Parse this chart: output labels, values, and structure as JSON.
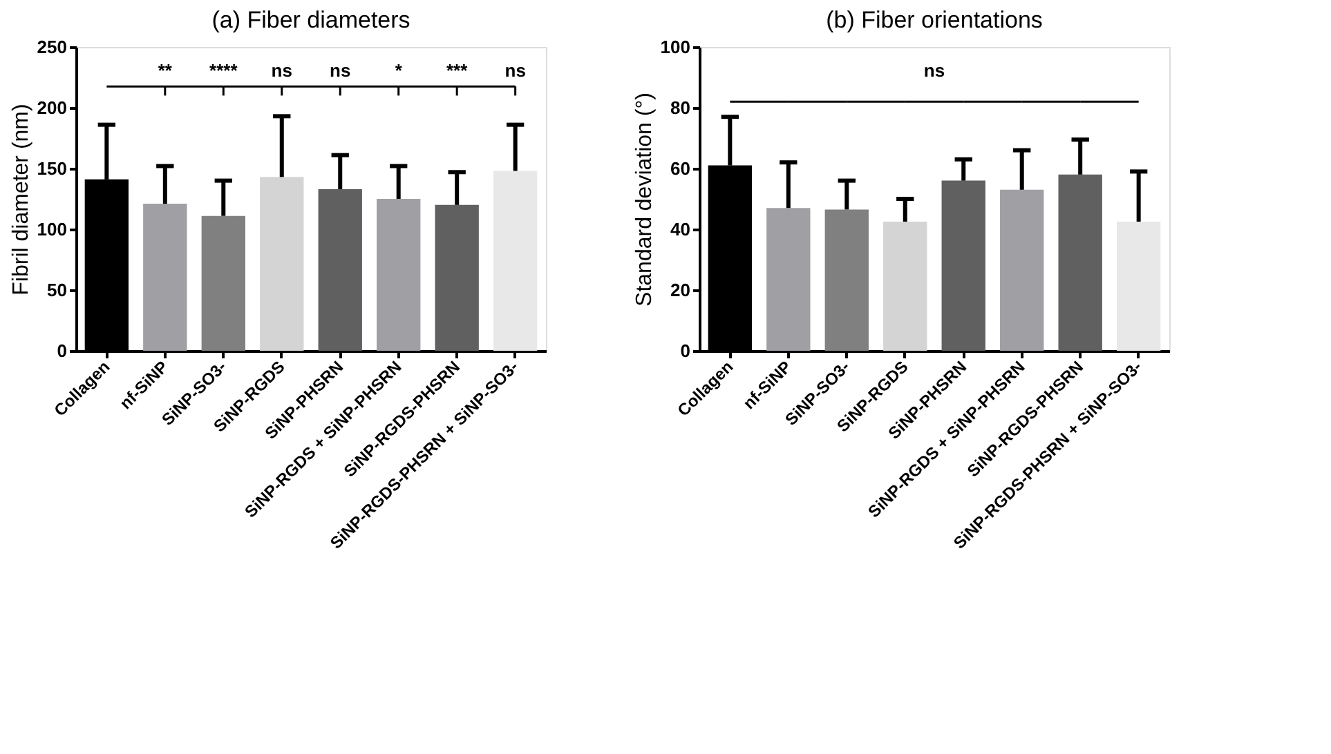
{
  "chart_data": [
    {
      "type": "bar",
      "title": "(a) Fiber diameters",
      "ylabel": "Fibril diameter (nm)",
      "categories": [
        "Collagen",
        "nf-SiNP",
        "SiNP-SO3-",
        "SiNP-RGDS",
        "SiNP-PHSRN",
        "SiNP-RGDS + SiNP-PHSRN",
        "SiNP-RGDS-PHSRN",
        "SiNP-RGDS-PHSRN + SiNP-SO3-"
      ],
      "values": [
        141,
        121,
        111,
        143,
        133,
        125,
        120,
        148
      ],
      "errors": [
        [
          141,
          186
        ],
        [
          121,
          152
        ],
        [
          111,
          140
        ],
        [
          143,
          193
        ],
        [
          133,
          161
        ],
        [
          125,
          152
        ],
        [
          120,
          147
        ],
        [
          148,
          186
        ]
      ],
      "colors": [
        "#000000",
        "#a0a0a4",
        "#808080",
        "#d4d4d4",
        "#606060",
        "#a0a0a4",
        "#606060",
        "#e8e8e8"
      ],
      "ylim": [
        0,
        250
      ],
      "yticks": [
        0,
        50,
        100,
        150,
        200,
        250
      ],
      "grid": false,
      "annotations": [
        "**",
        "****",
        "ns",
        "ns",
        "*",
        "***",
        "ns"
      ]
    },
    {
      "type": "bar",
      "title": "(b) Fiber orientations",
      "ylabel": "Standard deviation (°)",
      "categories": [
        "Collagen",
        "nf-SiNP",
        "SiNP-SO3-",
        "SiNP-RGDS",
        "SiNP-PHSRN",
        "SiNP-RGDS + SiNP-PHSRN",
        "SiNP-RGDS-PHSRN",
        "SiNP-RGDS-PHSRN + SiNP-SO3-"
      ],
      "values": [
        61,
        47,
        46.5,
        42.5,
        56,
        53,
        58,
        42.5
      ],
      "errors": [
        [
          61,
          77
        ],
        [
          47,
          62
        ],
        [
          46.5,
          56
        ],
        [
          42.5,
          50
        ],
        [
          56,
          63
        ],
        [
          53,
          66
        ],
        [
          58,
          69.5
        ],
        [
          42.5,
          59
        ]
      ],
      "colors": [
        "#000000",
        "#a0a0a4",
        "#808080",
        "#d4d4d4",
        "#606060",
        "#a0a0a4",
        "#606060",
        "#e8e8e8"
      ],
      "ylim": [
        0,
        100
      ],
      "yticks": [
        0,
        20,
        40,
        60,
        80,
        100
      ],
      "grid": false,
      "annotations": [
        "ns"
      ]
    }
  ]
}
